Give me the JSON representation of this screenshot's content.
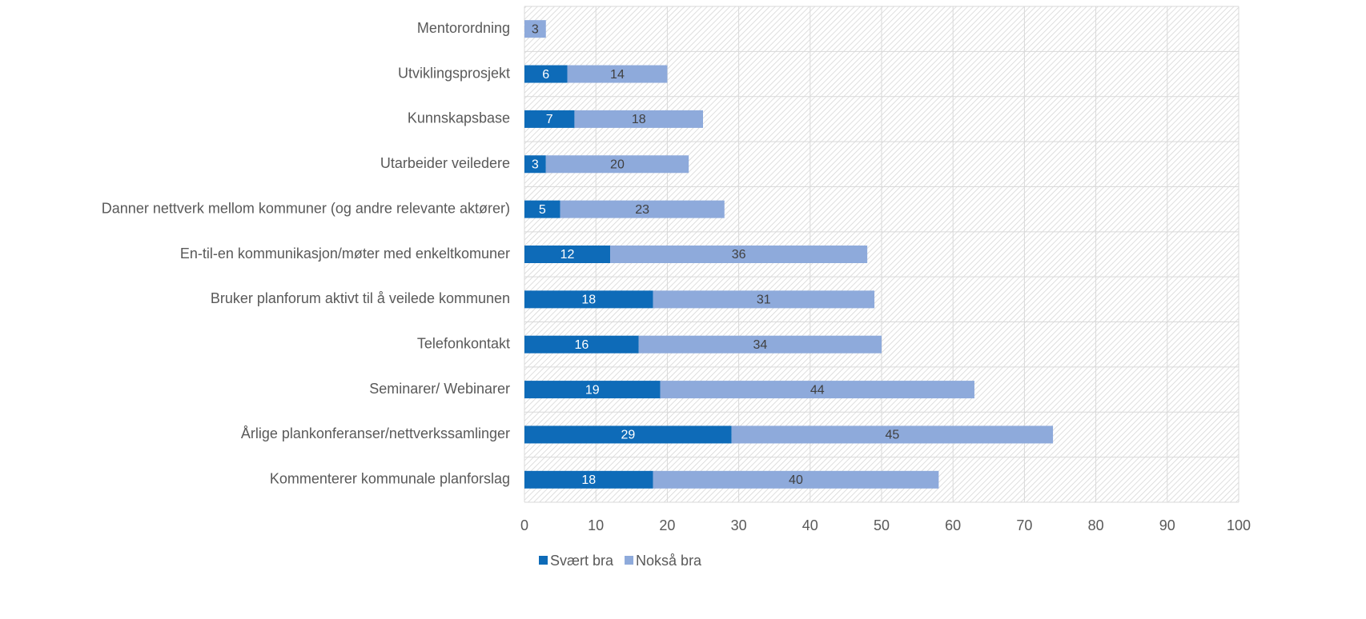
{
  "chart_data": {
    "type": "bar",
    "orientation": "horizontal",
    "stacked": true,
    "categories": [
      "Mentorordning",
      "Utviklingsprosjekt",
      "Kunnskapsbase",
      "Utarbeider veiledere",
      "Danner nettverk mellom kommuner (og andre relevante aktører)",
      "En-til-en kommunikasjon/møter med enkeltkomuner",
      "Bruker planforum aktivt til å veilede kommunen",
      "Telefonkontakt",
      "Seminarer/ Webinarer",
      "Årlige plankonferanser/nettverkssamlinger",
      "Kommenterer kommunale planforslag"
    ],
    "series": [
      {
        "name": "Svært bra",
        "color": "#0e6bb8",
        "values": [
          0,
          6,
          7,
          3,
          5,
          12,
          18,
          16,
          19,
          29,
          18
        ]
      },
      {
        "name": "Nokså bra",
        "color": "#8eaadb",
        "values": [
          3,
          14,
          18,
          20,
          23,
          36,
          31,
          34,
          44,
          45,
          40
        ]
      }
    ],
    "xlim": [
      0,
      100
    ],
    "xticks": [
      0,
      10,
      20,
      30,
      40,
      50,
      60,
      70,
      80,
      90,
      100
    ],
    "grid": true,
    "legend": "bottom"
  }
}
